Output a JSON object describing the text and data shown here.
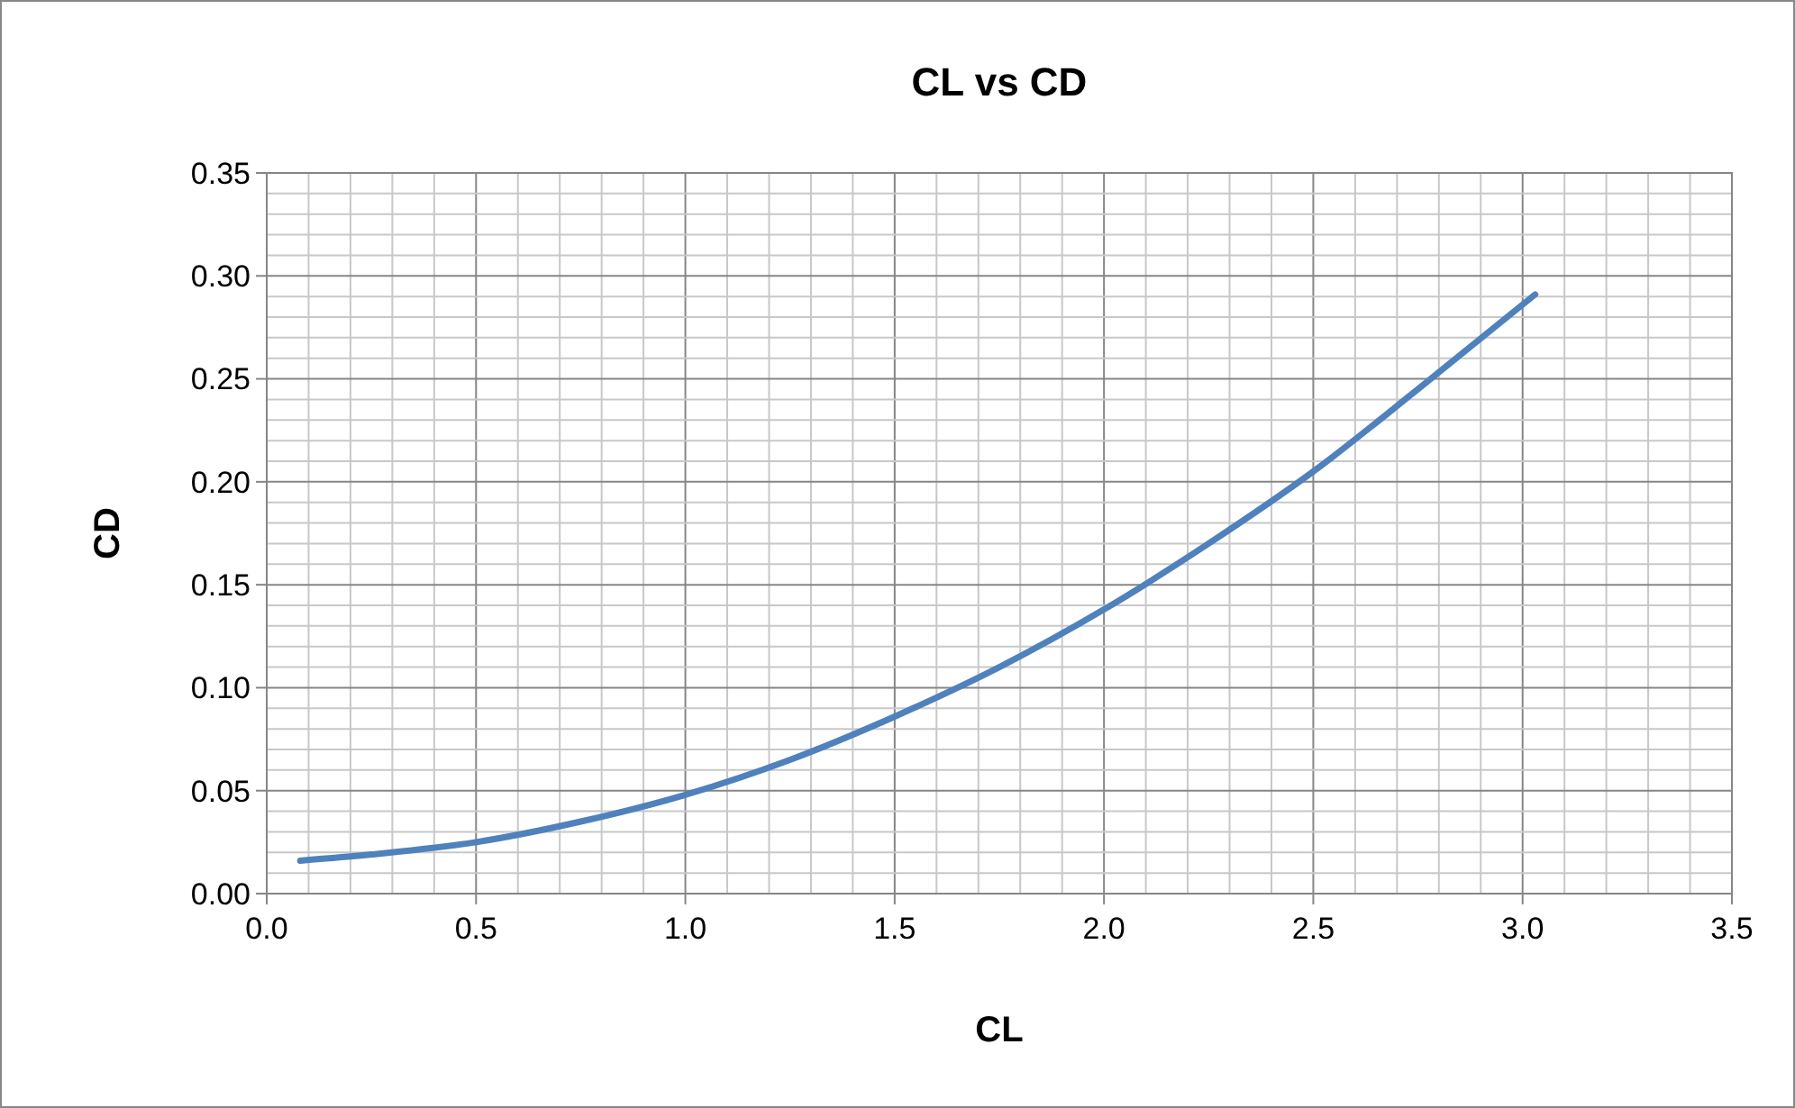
{
  "chart_data": {
    "type": "line",
    "title": "CL vs CD",
    "xlabel": "CL",
    "ylabel": "CD",
    "x": [
      0.08,
      0.25,
      0.5,
      0.75,
      1.0,
      1.25,
      1.5,
      1.75,
      2.0,
      2.25,
      2.5,
      2.75,
      3.03
    ],
    "series": [
      {
        "color": "#4f81bd",
        "values": [
          0.016,
          0.019,
          0.025,
          0.035,
          0.048,
          0.065,
          0.086,
          0.11,
          0.138,
          0.17,
          0.205,
          0.245,
          0.291
        ]
      }
    ],
    "xlim": [
      0,
      3.5
    ],
    "ylim": [
      0,
      0.35
    ],
    "xticks": [
      {
        "value": 0,
        "label": "0.0"
      },
      {
        "value": 0.1,
        "label": null
      },
      {
        "value": 0.2,
        "label": null
      },
      {
        "value": 0.3,
        "label": null
      },
      {
        "value": 0.4,
        "label": null
      },
      {
        "value": 0.5,
        "label": "0.5"
      },
      {
        "value": 0.6,
        "label": null
      },
      {
        "value": 0.7,
        "label": null
      },
      {
        "value": 0.8,
        "label": null
      },
      {
        "value": 0.9,
        "label": null
      },
      {
        "value": 1.0,
        "label": "1.0"
      },
      {
        "value": 1.1,
        "label": null
      },
      {
        "value": 1.2,
        "label": null
      },
      {
        "value": 1.3,
        "label": null
      },
      {
        "value": 1.4,
        "label": null
      },
      {
        "value": 1.5,
        "label": "1.5"
      },
      {
        "value": 1.6,
        "label": null
      },
      {
        "value": 1.7,
        "label": null
      },
      {
        "value": 1.8,
        "label": null
      },
      {
        "value": 1.9,
        "label": null
      },
      {
        "value": 2.0,
        "label": "2.0"
      },
      {
        "value": 2.1,
        "label": null
      },
      {
        "value": 2.2,
        "label": null
      },
      {
        "value": 2.3,
        "label": null
      },
      {
        "value": 2.4,
        "label": null
      },
      {
        "value": 2.5,
        "label": "2.5"
      },
      {
        "value": 2.6,
        "label": null
      },
      {
        "value": 2.7,
        "label": null
      },
      {
        "value": 2.8,
        "label": null
      },
      {
        "value": 2.9,
        "label": null
      },
      {
        "value": 3.0,
        "label": "3.0"
      },
      {
        "value": 3.1,
        "label": null
      },
      {
        "value": 3.2,
        "label": null
      },
      {
        "value": 3.3,
        "label": null
      },
      {
        "value": 3.4,
        "label": null
      },
      {
        "value": 3.5,
        "label": "3.5"
      }
    ],
    "yticks": [
      {
        "value": 0,
        "label": "0.00"
      },
      {
        "value": 0.01,
        "label": null
      },
      {
        "value": 0.02,
        "label": null
      },
      {
        "value": 0.03,
        "label": null
      },
      {
        "value": 0.04,
        "label": null
      },
      {
        "value": 0.05,
        "label": "0.05"
      },
      {
        "value": 0.06,
        "label": null
      },
      {
        "value": 0.07,
        "label": null
      },
      {
        "value": 0.08,
        "label": null
      },
      {
        "value": 0.09,
        "label": null
      },
      {
        "value": 0.1,
        "label": "0.10"
      },
      {
        "value": 0.11,
        "label": null
      },
      {
        "value": 0.12,
        "label": null
      },
      {
        "value": 0.13,
        "label": null
      },
      {
        "value": 0.14,
        "label": null
      },
      {
        "value": 0.15,
        "label": "0.15"
      },
      {
        "value": 0.16,
        "label": null
      },
      {
        "value": 0.17,
        "label": null
      },
      {
        "value": 0.18,
        "label": null
      },
      {
        "value": 0.19,
        "label": null
      },
      {
        "value": 0.2,
        "label": "0.20"
      },
      {
        "value": 0.21,
        "label": null
      },
      {
        "value": 0.22,
        "label": null
      },
      {
        "value": 0.23,
        "label": null
      },
      {
        "value": 0.24,
        "label": null
      },
      {
        "value": 0.25,
        "label": "0.25"
      },
      {
        "value": 0.26,
        "label": null
      },
      {
        "value": 0.27,
        "label": null
      },
      {
        "value": 0.28,
        "label": null
      },
      {
        "value": 0.29,
        "label": null
      },
      {
        "value": 0.3,
        "label": "0.30"
      },
      {
        "value": 0.31,
        "label": null
      },
      {
        "value": 0.32,
        "label": null
      },
      {
        "value": 0.33,
        "label": null
      },
      {
        "value": 0.34,
        "label": null
      },
      {
        "value": 0.35,
        "label": "0.35"
      }
    ],
    "grid": true,
    "marker": "none",
    "line_style": "solid"
  }
}
